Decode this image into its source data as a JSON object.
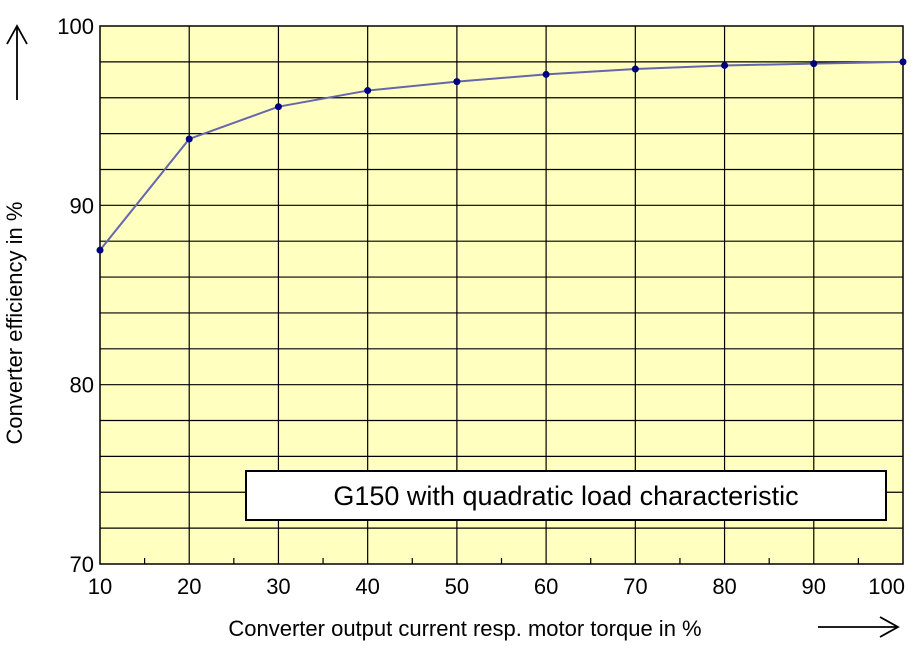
{
  "chart_data": {
    "type": "line",
    "title": "",
    "xlabel": "Converter output current resp. motor torque in %",
    "ylabel": "Converter efficiency in %",
    "annotation": "G150 with quadratic load characteristic",
    "xlim": [
      10,
      100
    ],
    "ylim": [
      70,
      100
    ],
    "x_ticks": [
      "10",
      "20",
      "30",
      "40",
      "50",
      "60",
      "70",
      "80",
      "90",
      "100"
    ],
    "y_ticks": [
      "70",
      "80",
      "90",
      "100"
    ],
    "grid": true,
    "series": [
      {
        "x": [
          10,
          20,
          30,
          40,
          50,
          60,
          70,
          80,
          90,
          100
        ],
        "values": [
          87.5,
          93.7,
          95.5,
          96.4,
          96.9,
          97.3,
          97.6,
          97.8,
          97.9,
          98.0
        ]
      }
    ],
    "colors": {
      "plot_background": "#ffffc0",
      "grid": "#000000",
      "line": "#6666aa",
      "markers": "#000080"
    }
  }
}
